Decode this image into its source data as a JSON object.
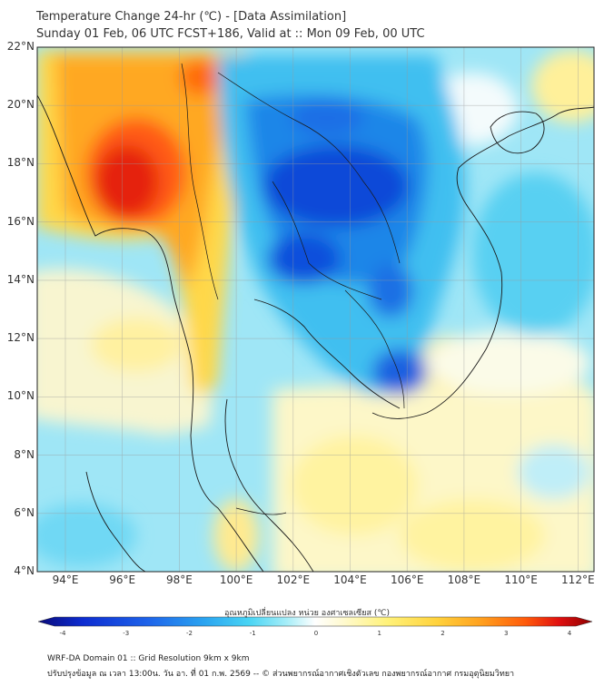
{
  "title": {
    "line1": "Temperature Change 24-hr (℃) - [Data Assimilation]",
    "line2": "Sunday 01 Feb, 06 UTC FCST+186, Valid at :: Mon 09 Feb, 00 UTC"
  },
  "map": {
    "lat_labels": [
      "22°N",
      "20°N",
      "18°N",
      "16°N",
      "14°N",
      "12°N",
      "10°N",
      "8°N",
      "6°N",
      "4°N"
    ],
    "lon_labels": [
      "94°E",
      "96°E",
      "98°E",
      "100°E",
      "102°E",
      "104°E",
      "106°E",
      "108°E",
      "110°E",
      "112°E"
    ]
  },
  "colorbar": {
    "title": "อุณหภูมิเปลี่ยนแปลง หน่วย องศาเซลเซียส (℃)",
    "ticks": [
      "-4",
      "-3",
      "-2",
      "-1",
      "0",
      "1",
      "2",
      "3",
      "4"
    ],
    "range": [
      -4,
      4
    ],
    "colors": [
      "#0a0a7a",
      "#0d2cd0",
      "#1e64ea",
      "#2aa4f0",
      "#48d4f4",
      "#8ee8f6",
      "#c4f2f8",
      "#ffffff",
      "#fffad0",
      "#fff27a",
      "#ffd23c",
      "#ffa01e",
      "#ff5a0a",
      "#e01010",
      "#8e0000"
    ]
  },
  "footer": {
    "line1": "WRF-DA Domain 01 :: Grid Resolution 9km x 9km",
    "line2": "ปรับปรุงข้อมูล ณ เวลา 13:00น. วัน อา. ที่ 01 ก.พ. 2569 -- © ส่วนพยากรณ์อากาศเชิงตัวเลข กองพยากรณ์อากาศ กรมอุตุนิยมวิทยา"
  }
}
